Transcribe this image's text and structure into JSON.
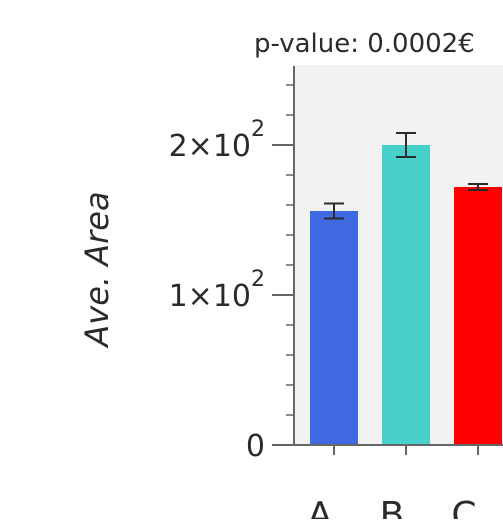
{
  "chart_data": {
    "type": "bar",
    "subtitle": "p-value: 0.0002€",
    "xlabel": "",
    "ylabel": "Ave. Area",
    "categories": [
      "A",
      "B",
      "C"
    ],
    "values": [
      156,
      200,
      172
    ],
    "errors": [
      5,
      8,
      2
    ],
    "colors": [
      "#4169e1",
      "#48d1cc",
      "#ff0000"
    ],
    "ylim": [
      0,
      250
    ],
    "yticks": [
      {
        "value": 0,
        "label": "0"
      },
      {
        "value": 100,
        "label": "1×10",
        "exp": "2"
      },
      {
        "value": 200,
        "label": "2×10",
        "exp": "2"
      }
    ],
    "minor_tick_step": 20,
    "plot_background": "#f2f2f2",
    "grid": false,
    "legend": "none"
  }
}
